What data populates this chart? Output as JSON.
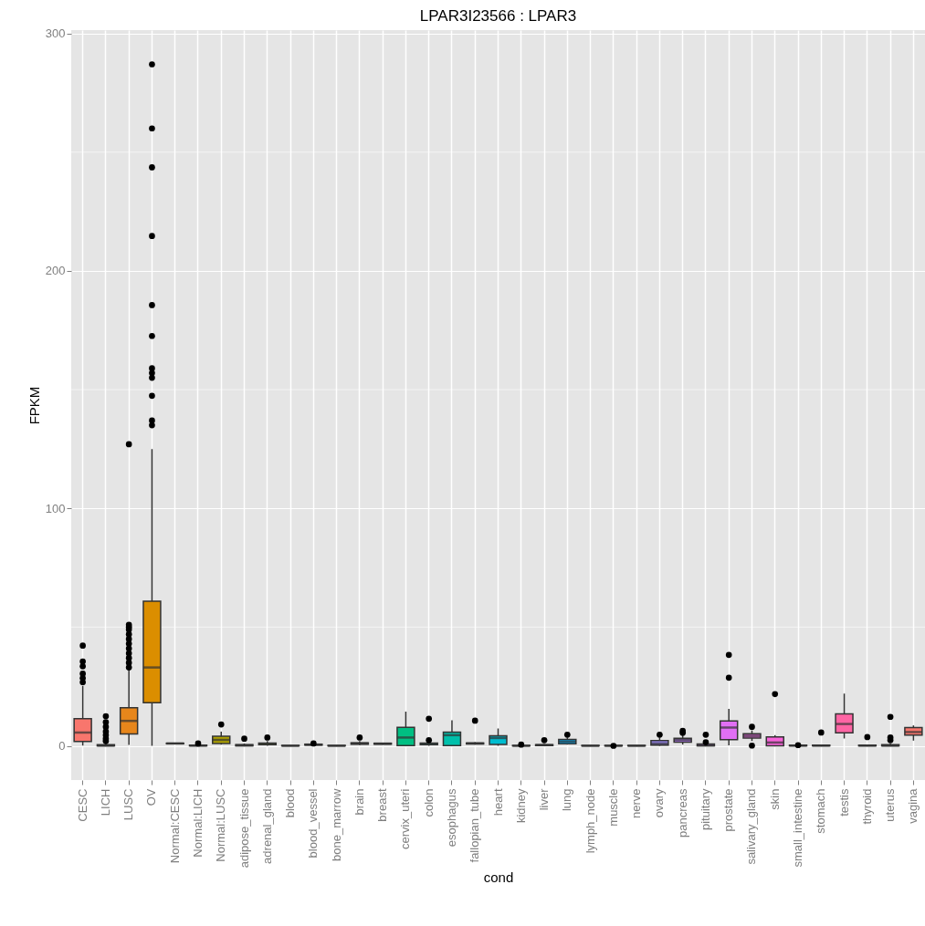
{
  "chart_data": {
    "type": "box",
    "title": "LPAR3I23566 : LPAR3",
    "xlabel": "cond",
    "ylabel": "FPKM",
    "categories": [
      "CESC",
      "LICH",
      "LUSC",
      "OV",
      "Normal:CESC",
      "Normal:LICH",
      "Normal:LUSC",
      "adipose_tissue",
      "adrenal_gland",
      "blood",
      "blood_vessel",
      "bone_marrow",
      "brain",
      "breast",
      "cervix_uteri",
      "colon",
      "esophagus",
      "fallopian_tube",
      "heart",
      "kidney",
      "liver",
      "lung",
      "lymph_node",
      "muscle",
      "nerve",
      "ovary",
      "pancreas",
      "pituitary",
      "prostate",
      "salivary_gland",
      "skin",
      "small_intestine",
      "stomach",
      "testis",
      "thyroid",
      "uterus",
      "vagina"
    ],
    "colors": [
      "#F8766D",
      "#F17E4F",
      "#E7861B",
      "#DB8E00",
      "#CE9500",
      "#BF9C00",
      "#AFA200",
      "#9CA700",
      "#87AC00",
      "#6FB000",
      "#50B400",
      "#00B81F",
      "#00BB4E",
      "#00BD6A",
      "#00BF82",
      "#00C097",
      "#00C0AB",
      "#00BFBE",
      "#00BDD0",
      "#00BAE0",
      "#00B5EE",
      "#00AFFA",
      "#00A8FF",
      "#3A9FFF",
      "#7C96FF",
      "#A08CFF",
      "#BC81FF",
      "#D177FE",
      "#E16FF4",
      "#EE68E8",
      "#F863DA",
      "#FD61CA",
      "#FF62B8",
      "#FF65A4",
      "#FF698F",
      "#FC6F7A",
      "#F8766D"
    ],
    "boxes": [
      {
        "low": 0.1,
        "q1": 1.8,
        "median": 5.6,
        "q3": 11.4,
        "high": 25.3,
        "outliers": [
          42.2,
          35.5,
          33.5,
          30.4,
          28.5,
          26.8
        ]
      },
      {
        "low": 0,
        "q1": 0,
        "median": 0.1,
        "q3": 0.5,
        "high": 1.2,
        "outliers": [
          12.5,
          10,
          8,
          6,
          4.5,
          3,
          2
        ]
      },
      {
        "low": 0.4,
        "q1": 5,
        "median": 10.5,
        "q3": 16,
        "high": 32,
        "outliers": [
          127,
          51,
          50,
          49,
          47,
          45,
          43,
          41,
          39,
          37,
          35,
          33
        ]
      },
      {
        "low": 0,
        "q1": 18.2,
        "median": 33,
        "q3": 60.9,
        "high": 125,
        "outliers": [
          287,
          260,
          243.6,
          214.7,
          185.6,
          172.6,
          159,
          157,
          155,
          147.4,
          137,
          135
        ]
      },
      {
        "low": 0.8,
        "q1": 0.9,
        "median": 1,
        "q3": 1.1,
        "high": 1.2
      },
      {
        "low": 0,
        "q1": 0,
        "median": 0.1,
        "q3": 0.3,
        "high": 0.5,
        "outliers": [
          1
        ]
      },
      {
        "low": 0.5,
        "q1": 1,
        "median": 2.5,
        "q3": 4,
        "high": 6,
        "outliers": [
          9
        ]
      },
      {
        "low": 0,
        "q1": 0,
        "median": 0.2,
        "q3": 0.5,
        "high": 1,
        "outliers": [
          3
        ]
      },
      {
        "low": 0,
        "q1": 0.5,
        "median": 0.8,
        "q3": 1.2,
        "high": 2,
        "outliers": [
          3.5
        ]
      },
      {
        "low": 0,
        "q1": 0,
        "median": 0,
        "q3": 0.2,
        "high": 0.3
      },
      {
        "low": 0,
        "q1": 0.3,
        "median": 0.5,
        "q3": 0.7,
        "high": 0.8,
        "outliers": [
          1
        ]
      },
      {
        "low": 0,
        "q1": 0,
        "median": 0,
        "q3": 0.2,
        "high": 0.3
      },
      {
        "low": 0.3,
        "q1": 0.7,
        "median": 1,
        "q3": 1.3,
        "high": 2,
        "outliers": [
          3.5
        ]
      },
      {
        "low": 0.5,
        "q1": 0.7,
        "median": 0.9,
        "q3": 1.1,
        "high": 1.3
      },
      {
        "low": 0,
        "q1": 0.1,
        "median": 3.5,
        "q3": 7.8,
        "high": 14.4
      },
      {
        "low": 0,
        "q1": 0.5,
        "median": 0.8,
        "q3": 1.2,
        "high": 2,
        "outliers": [
          11.4,
          2.4
        ]
      },
      {
        "low": 0,
        "q1": 0.1,
        "median": 4.5,
        "q3": 5.8,
        "high": 10.8
      },
      {
        "low": 0.5,
        "q1": 0.8,
        "median": 1,
        "q3": 1.2,
        "high": 1.5,
        "outliers": [
          10.6
        ]
      },
      {
        "low": 0,
        "q1": 0.6,
        "median": 3.3,
        "q3": 4.2,
        "high": 7.3
      },
      {
        "low": 0,
        "q1": 0,
        "median": 0,
        "q3": 0.2,
        "high": 0.4,
        "outliers": [
          0.5
        ]
      },
      {
        "low": 0,
        "q1": 0.1,
        "median": 0.3,
        "q3": 0.5,
        "high": 0.8,
        "outliers": [
          2.4
        ]
      },
      {
        "low": 0.5,
        "q1": 0.9,
        "median": 1.8,
        "q3": 2.7,
        "high": 3.5,
        "outliers": [
          4.7
        ]
      },
      {
        "low": 0,
        "q1": 0,
        "median": 0,
        "q3": 0.2,
        "high": 0.3
      },
      {
        "low": 0,
        "q1": 0,
        "median": 0,
        "q3": 0.2,
        "high": 0.3,
        "outliers": [
          0
        ]
      },
      {
        "low": 0,
        "q1": 0,
        "median": 0,
        "q3": 0.2,
        "high": 0.3
      },
      {
        "low": 0,
        "q1": 0.3,
        "median": 1,
        "q3": 2.2,
        "high": 3.5,
        "outliers": [
          4.7
        ]
      },
      {
        "low": 0.5,
        "q1": 1.5,
        "median": 2.5,
        "q3": 3.2,
        "high": 4.5,
        "outliers": [
          6.3,
          5.5
        ]
      },
      {
        "low": 0,
        "q1": 0,
        "median": 0.2,
        "q3": 0.8,
        "high": 1.2,
        "outliers": [
          4.7,
          1.5
        ]
      },
      {
        "low": 0.2,
        "q1": 2.6,
        "median": 7.7,
        "q3": 10.5,
        "high": 15.6,
        "outliers": [
          38.3,
          28.7
        ]
      },
      {
        "low": 2,
        "q1": 3.3,
        "median": 4.2,
        "q3": 5.1,
        "high": 6.5,
        "outliers": [
          8,
          0.1
        ]
      },
      {
        "low": 0,
        "q1": 0,
        "median": 1.4,
        "q3": 3.8,
        "high": 4.5,
        "outliers": [
          21.8
        ]
      },
      {
        "low": 0,
        "q1": 0,
        "median": 0.1,
        "q3": 0.3,
        "high": 0.5,
        "outliers": [
          0.3
        ]
      },
      {
        "low": 0,
        "q1": 0,
        "median": 0.1,
        "q3": 0.3,
        "high": 0.5,
        "outliers": [
          5.6
        ]
      },
      {
        "low": 3.1,
        "q1": 5.5,
        "median": 9.2,
        "q3": 13.5,
        "high": 22
      },
      {
        "low": 0,
        "q1": 0,
        "median": 0.1,
        "q3": 0.3,
        "high": 0.5,
        "outliers": [
          3.7
        ]
      },
      {
        "low": 0,
        "q1": 0,
        "median": 0.1,
        "q3": 0.5,
        "high": 1,
        "outliers": [
          12.2,
          3.5,
          2.4
        ]
      },
      {
        "low": 2.2,
        "q1": 4.5,
        "median": 5.8,
        "q3": 7.7,
        "high": 8.6
      }
    ],
    "ylim": [
      -14.4,
      301.4
    ],
    "yticks": [
      0,
      {
        "value": 50,
        "label": null
      },
      100,
      {
        "value": 150,
        "label": null
      },
      200,
      {
        "value": 250,
        "label": null
      },
      300
    ],
    "grid": true
  }
}
